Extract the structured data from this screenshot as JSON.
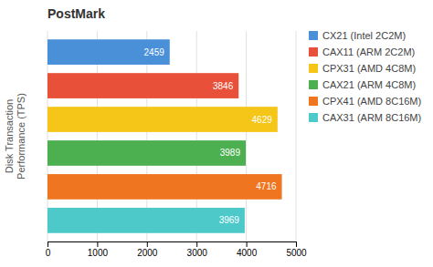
{
  "chart_data": {
    "type": "bar",
    "orientation": "horizontal",
    "title": "PostMark",
    "ylabel": "Disk Transaction\nPerformance (TPS)",
    "categories": [
      "CX21 (Intel 2C2M)",
      "CAX11 (ARM 2C2M)",
      "CPX31 (AMD 4C8M)",
      "CAX21 (ARM 4C8M)",
      "CPX41 (AMD 8C16M)",
      "CAX31 (ARM 8C16M)"
    ],
    "values": [
      2459,
      3846,
      4629,
      3989,
      4716,
      3969
    ],
    "colors": [
      "#4a90d9",
      "#e8503a",
      "#f5c518",
      "#4caf50",
      "#f07520",
      "#4dc9c9"
    ],
    "xlim": [
      0,
      5000
    ],
    "xticks": [
      0,
      1000,
      2000,
      3000,
      4000,
      5000
    ],
    "grid": true,
    "legend": "right",
    "data_labels": true,
    "tick_labels": "x"
  }
}
